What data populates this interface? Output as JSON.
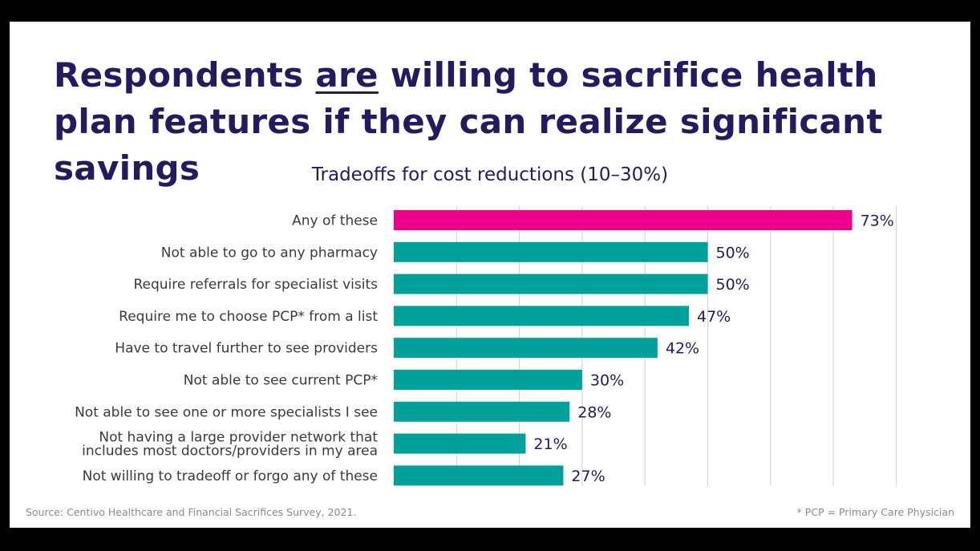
{
  "slide": {
    "title_part1": "Respondents ",
    "title_emph": "are",
    "title_part2": " willing to sacrifice health plan features if they can realize significant savings",
    "source": "Source: Centivo Healthcare and Financial Sacrifices Survey, 2021.",
    "footnote": "* PCP = Primary Care Physician"
  },
  "chart_data": {
    "type": "bar",
    "orientation": "horizontal",
    "title": "Tradeoffs for cost reductions (10–30%)",
    "categories": [
      [
        "Any of these"
      ],
      [
        "Not able to go to any pharmacy"
      ],
      [
        "Require referrals for specialist visits"
      ],
      [
        "Require me to choose PCP* from a list"
      ],
      [
        "Have to travel further to see providers"
      ],
      [
        "Not able to see current PCP*"
      ],
      [
        "Not able to see one or more specialists I see"
      ],
      [
        "Not having a large provider network that",
        "includes most doctors/providers in my area"
      ],
      [
        "Not willing to tradeoff or forgo any of these"
      ]
    ],
    "values": [
      73,
      50,
      50,
      47,
      42,
      30,
      28,
      21,
      27
    ],
    "value_labels": [
      "73%",
      "50%",
      "50%",
      "47%",
      "42%",
      "30%",
      "28%",
      "21%",
      "27%"
    ],
    "xlim": [
      0,
      80
    ],
    "grid": true,
    "colors": {
      "highlight": "#ec008c",
      "bar": "#00a19a",
      "grid": "#d0d0d0"
    },
    "highlight_index": 0
  }
}
